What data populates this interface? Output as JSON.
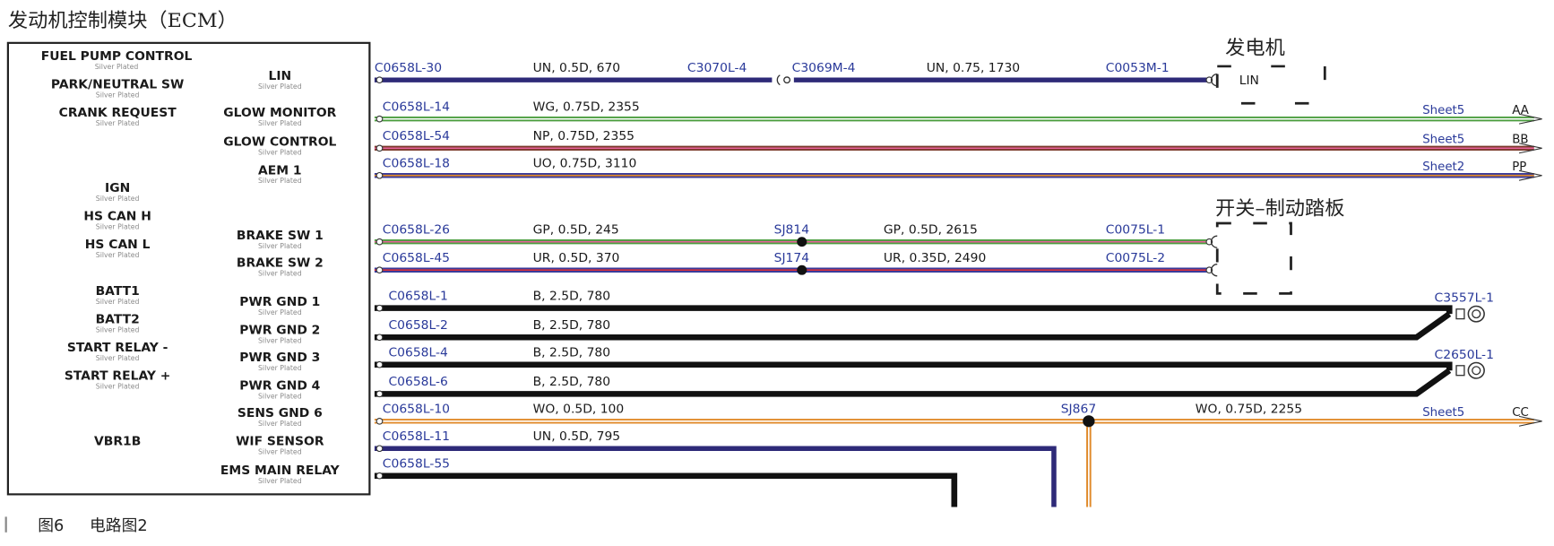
{
  "title": "发动机控制模块（ECM）",
  "ecm": {
    "left_pins": [
      {
        "label": "FUEL PUMP CONTROL",
        "note": "Silver Plated"
      },
      {
        "label": "PARK/NEUTRAL SW",
        "note": "Silver Plated"
      },
      {
        "label": "CRANK REQUEST",
        "note": "Silver Plated"
      },
      {
        "label": "IGN",
        "note": "Silver Plated"
      },
      {
        "label": "HS CAN H",
        "note": "Silver Plated"
      },
      {
        "label": "HS CAN L",
        "note": "Silver Plated"
      },
      {
        "label": "BATT1",
        "note": "Silver Plated"
      },
      {
        "label": "BATT2",
        "note": "Silver Plated"
      },
      {
        "label": "START RELAY -",
        "note": "Silver Plated"
      },
      {
        "label": "START RELAY +",
        "note": "Silver Plated"
      },
      {
        "label": "VBR1B"
      }
    ],
    "right_pins": [
      {
        "label": "LIN",
        "note": "Silver Plated"
      },
      {
        "label": "GLOW MONITOR",
        "note": "Silver Plated"
      },
      {
        "label": "GLOW CONTROL",
        "note": "Silver Plated"
      },
      {
        "label": "AEM 1",
        "note": "Silver Plated"
      },
      {
        "label": "BRAKE SW 1",
        "note": "Silver Plated"
      },
      {
        "label": "BRAKE SW 2",
        "note": "Silver Plated"
      },
      {
        "label": "PWR GND 1",
        "note": "Silver Plated"
      },
      {
        "label": "PWR GND 2",
        "note": "Silver Plated"
      },
      {
        "label": "PWR GND 3",
        "note": "Silver Plated"
      },
      {
        "label": "PWR GND 4",
        "note": "Silver Plated"
      },
      {
        "label": "SENS GND 6",
        "note": "Silver Plated"
      },
      {
        "label": "WIF SENSOR",
        "note": "Silver Plated"
      },
      {
        "label": "EMS MAIN RELAY",
        "note": "Silver Plated"
      }
    ]
  },
  "wires": [
    {
      "from": "C0658L-30",
      "spec": "UN, 0.5D, 670",
      "inline_from": "C3070L-4",
      "inline_to": "C3069M-4",
      "spec2": "UN, 0.75, 1730",
      "to": "C0053M-1",
      "colors": [
        "#2e2a78",
        "#2e2a78"
      ]
    },
    {
      "from": "C0658L-14",
      "spec": "WG, 0.75D, 2355",
      "sheet": "Sheet5",
      "ref": "AA",
      "colors": [
        "#4b9e3f",
        "#ffffff"
      ]
    },
    {
      "from": "C0658L-54",
      "spec": "NP, 0.75D, 2355",
      "sheet": "Sheet5",
      "ref": "BB",
      "colors": [
        "#7a3a2a",
        "#e8609a"
      ]
    },
    {
      "from": "C0658L-18",
      "spec": "UO, 0.75D, 3110",
      "sheet": "Sheet2",
      "ref": "PP",
      "colors": [
        "#3a3a9a",
        "#e08a2a"
      ]
    },
    {
      "from": "C0658L-26",
      "spec": "GP, 0.5D, 245",
      "splice": "SJ814",
      "spec2": "GP, 0.5D, 2615",
      "to": "C0075L-1",
      "colors": [
        "#4b9e3f",
        "#e8609a"
      ]
    },
    {
      "from": "C0658L-45",
      "spec": "UR, 0.5D, 370",
      "splice": "SJ174",
      "spec2": "UR, 0.35D, 2490",
      "to": "C0075L-2",
      "colors": [
        "#3a3a9a",
        "#d8303a"
      ]
    },
    {
      "from": "C0658L-1",
      "spec": "B, 2.5D, 780",
      "colors": [
        "#111111",
        "#111111"
      ]
    },
    {
      "from": "C0658L-2",
      "spec": "B, 2.5D, 780",
      "colors": [
        "#111111",
        "#111111"
      ]
    },
    {
      "from": "C0658L-4",
      "spec": "B, 2.5D, 780",
      "colors": [
        "#111111",
        "#111111"
      ]
    },
    {
      "from": "C0658L-6",
      "spec": "B, 2.5D, 780",
      "colors": [
        "#111111",
        "#111111"
      ]
    },
    {
      "from": "C0658L-10",
      "spec": "WO, 0.5D, 100",
      "splice": "SJ867",
      "spec2": "WO, 0.75D, 2255",
      "sheet": "Sheet5",
      "ref": "CC",
      "colors": [
        "#e08a2a",
        "#ffffff"
      ]
    },
    {
      "from": "C0658L-11",
      "spec": "UN, 0.5D, 795",
      "colors": [
        "#2e2a78",
        "#2e2a78"
      ]
    },
    {
      "from": "C0658L-55",
      "colors": [
        "#111111",
        "#111111"
      ]
    }
  ],
  "ground_connectors": [
    {
      "label": "C3557L-1"
    },
    {
      "label": "C2650L-1"
    }
  ],
  "components": {
    "generator": {
      "label": "发电机",
      "pin": "LIN"
    },
    "brake_switch": {
      "label": "开关–制动踏板"
    }
  },
  "caption": {
    "figure": "图6",
    "text": "电路图2"
  }
}
